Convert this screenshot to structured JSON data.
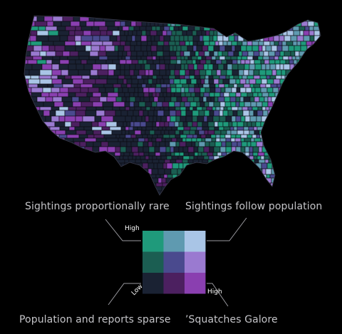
{
  "captions": {
    "top_left": "Sightings proportionally rare",
    "top_right": "Sightings follow population",
    "bottom_left": "Population and reports sparse",
    "bottom_right": "’Squatches Galore"
  },
  "legend": {
    "high_vertical": "High",
    "high_horizontal": "High",
    "low": "Low",
    "grid": [
      [
        "#1f9a7b",
        "#5f9ab0",
        "#a9c5e6"
      ],
      [
        "#1b5e52",
        "#4a4a8e",
        "#9a7ad0"
      ],
      [
        "#1a2233",
        "#4c2060",
        "#8a3fb0"
      ]
    ]
  },
  "colors": {
    "background": "#000000",
    "county_border": "#0b0b12",
    "outline": "#8a8aa0"
  }
}
